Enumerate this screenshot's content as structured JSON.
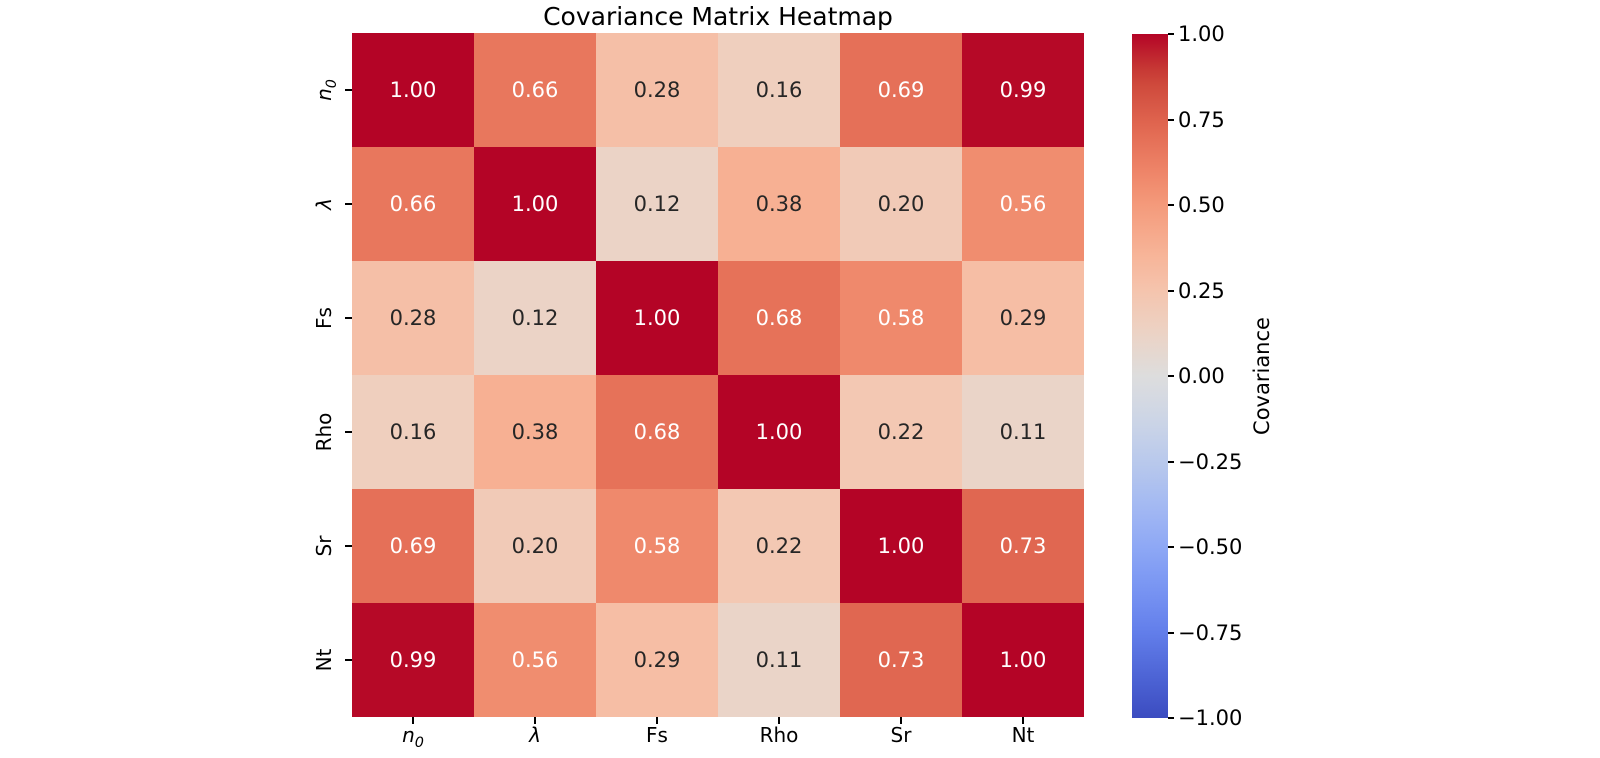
{
  "title": "Covariance Matrix Heatmap",
  "chart_data": {
    "type": "heatmap",
    "title": "Covariance Matrix Heatmap",
    "categories": [
      {
        "text": "n",
        "sub": "0",
        "italic": true
      },
      {
        "text": "λ",
        "sub": "",
        "italic": true
      },
      {
        "text": "Fs",
        "sub": "",
        "italic": false
      },
      {
        "text": "Rho",
        "sub": "",
        "italic": false
      },
      {
        "text": "Sr",
        "sub": "",
        "italic": false
      },
      {
        "text": "Nt",
        "sub": "",
        "italic": false
      }
    ],
    "matrix": [
      [
        1.0,
        0.66,
        0.28,
        0.16,
        0.69,
        0.99
      ],
      [
        0.66,
        1.0,
        0.12,
        0.38,
        0.2,
        0.56
      ],
      [
        0.28,
        0.12,
        1.0,
        0.68,
        0.58,
        0.29
      ],
      [
        0.16,
        0.38,
        0.68,
        1.0,
        0.22,
        0.11
      ],
      [
        0.69,
        0.2,
        0.58,
        0.22,
        1.0,
        0.73
      ],
      [
        0.99,
        0.56,
        0.29,
        0.11,
        0.73,
        1.0
      ]
    ],
    "value_decimals": 2,
    "vmin": -1,
    "vmax": 1,
    "grid": false,
    "colormap": {
      "name": "coolwarm",
      "anchors": [
        [
          0.0,
          [
            59,
            76,
            192
          ]
        ],
        [
          0.0625,
          [
            78,
            101,
            214
          ]
        ],
        [
          0.125,
          [
            98,
            126,
            234
          ]
        ],
        [
          0.1875,
          [
            120,
            148,
            243
          ]
        ],
        [
          0.25,
          [
            142,
            168,
            245
          ]
        ],
        [
          0.3125,
          [
            164,
            186,
            242
          ]
        ],
        [
          0.375,
          [
            185,
            201,
            236
          ]
        ],
        [
          0.4375,
          [
            205,
            213,
            230
          ]
        ],
        [
          0.5,
          [
            221,
            221,
            221
          ]
        ],
        [
          0.5625,
          [
            236,
            211,
            197
          ]
        ],
        [
          0.625,
          [
            245,
            196,
            173
          ]
        ],
        [
          0.6875,
          [
            247,
            177,
            148
          ]
        ],
        [
          0.75,
          [
            244,
            154,
            123
          ]
        ],
        [
          0.8125,
          [
            236,
            127,
            99
          ]
        ],
        [
          0.875,
          [
            222,
            98,
            77
          ]
        ],
        [
          0.9375,
          [
            203,
            68,
            56
          ]
        ],
        [
          1.0,
          [
            180,
            4,
            38
          ]
        ]
      ]
    },
    "annotation_text_colors": {
      "on_dark": "#ffffff",
      "on_light": "#262626"
    },
    "luminance_threshold": 0.408,
    "colorbar": {
      "label": "Covariance",
      "position": "right",
      "ticks": [
        {
          "value": 1.0,
          "label": "1.00"
        },
        {
          "value": 0.75,
          "label": "0.75"
        },
        {
          "value": 0.5,
          "label": "0.50"
        },
        {
          "value": 0.25,
          "label": "0.25"
        },
        {
          "value": 0.0,
          "label": "0.00"
        },
        {
          "value": -0.25,
          "label": "−0.25"
        },
        {
          "value": -0.5,
          "label": "−0.50"
        },
        {
          "value": -0.75,
          "label": "−0.75"
        },
        {
          "value": -1.0,
          "label": "−1.00"
        }
      ]
    },
    "tick_color": "#000000",
    "title_color": "#000000",
    "background_color": "#ffffff"
  }
}
